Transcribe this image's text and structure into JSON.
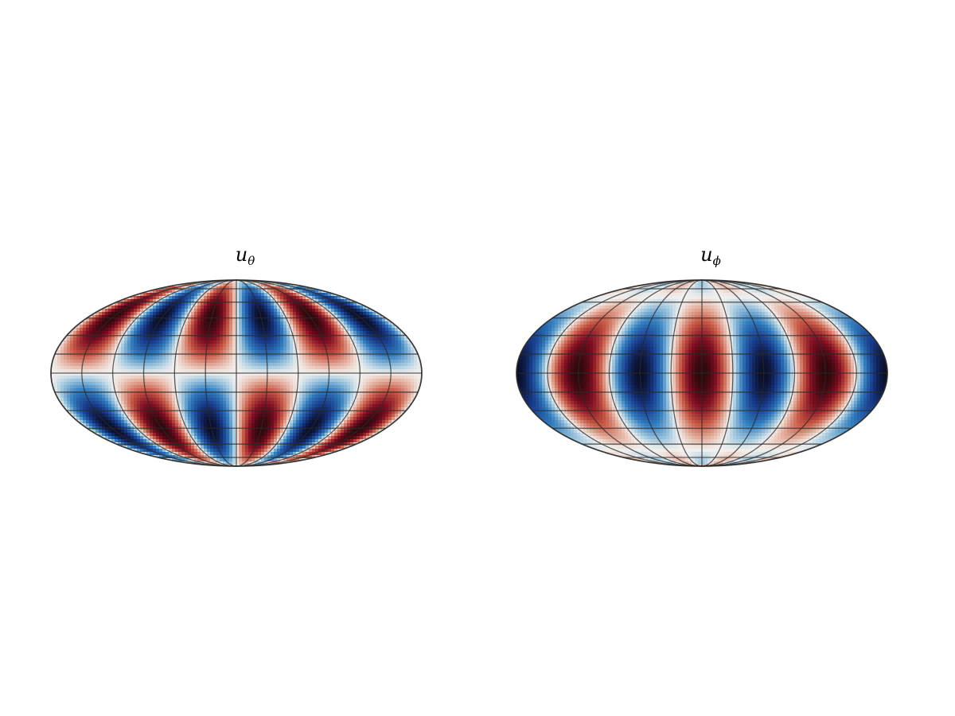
{
  "figure": {
    "panels": [
      {
        "title": {
          "base": "u",
          "subscript": "θ"
        }
      },
      {
        "title": {
          "base": "u",
          "subscript": "ϕ"
        }
      }
    ]
  }
}
